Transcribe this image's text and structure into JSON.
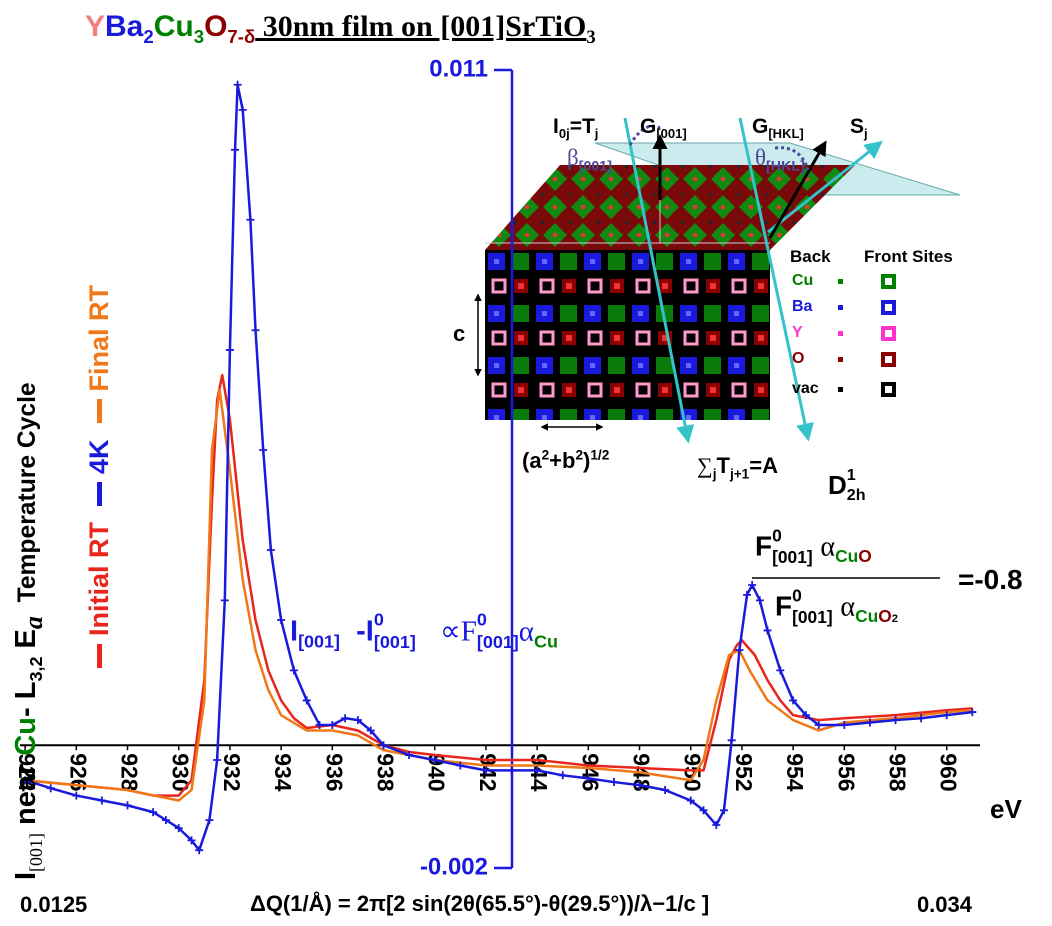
{
  "chart_data": {
    "type": "line",
    "title": [
      "Y",
      "Ba",
      "2",
      "Cu",
      "3",
      "O",
      "7-δ",
      " 30nm film on [001]SrTiO",
      "3"
    ],
    "ylabel": [
      "I",
      "[001]",
      " near ",
      "Cu",
      "- L",
      "3,2",
      " E",
      "a",
      "  Temperature Cycle"
    ],
    "xlabel": "eV",
    "x2label": "ΔQ(1/Å) = 2π[2 sin(2θ(65.5°)-θ(29.5°))/λ−1/c ]",
    "x2ticks": [
      0.0125,
      0.034
    ],
    "xlim": [
      923.8,
      961.3
    ],
    "xticks": [
      924,
      926,
      928,
      930,
      932,
      934,
      936,
      938,
      940,
      942,
      944,
      946,
      948,
      950,
      952,
      954,
      956,
      958,
      960
    ],
    "ylim": [
      -0.002,
      0.011
    ],
    "yticks": [
      -0.002,
      0.011
    ],
    "grid": false,
    "series": [
      {
        "name": "Initial RT",
        "color": "#e8261c",
        "x": [
          924,
          926,
          928,
          929,
          930,
          930.5,
          931,
          931.3,
          931.5,
          931.7,
          932,
          932.5,
          933,
          933.5,
          934,
          934.5,
          935,
          936,
          937,
          938,
          939,
          940,
          942,
          944,
          946,
          948,
          950,
          950.5,
          951,
          951.5,
          951.8,
          952,
          952.5,
          953,
          953.5,
          954,
          955,
          956,
          958,
          960,
          961
        ],
        "values": [
          -0.00057,
          -0.00065,
          -0.00073,
          -0.00082,
          -0.00082,
          -0.00057,
          0.00106,
          0.00399,
          0.00562,
          0.00603,
          0.0053,
          0.00334,
          0.00204,
          0.00122,
          0.00073,
          0.00044,
          0.00028,
          0.00033,
          0.00024,
          0,
          -0.00011,
          -0.00016,
          -0.00024,
          -0.00024,
          -0.00033,
          -0.00037,
          -0.00041,
          -0.00041,
          0.00041,
          0.00139,
          0.00163,
          0.00171,
          0.00147,
          0.00106,
          0.00073,
          0.00049,
          0.00041,
          0.00044,
          0.00049,
          0.00057,
          0.0006
        ]
      },
      {
        "name": "4K",
        "color": "#1a1adc",
        "marker": "+",
        "x": [
          924,
          925,
          926,
          927,
          928,
          929,
          929.5,
          930,
          930.5,
          930.8,
          931.2,
          931.5,
          931.8,
          932,
          932.2,
          932.3,
          932.5,
          932.8,
          933,
          933.3,
          933.6,
          934,
          934.5,
          935,
          935.5,
          936,
          936.5,
          937,
          937.5,
          938,
          939,
          940,
          941,
          942,
          943,
          944,
          945,
          946,
          947,
          948,
          949,
          950,
          950.5,
          951,
          951.3,
          951.6,
          951.9,
          952.2,
          952.4,
          952.7,
          953,
          953.5,
          954,
          954.5,
          955,
          956,
          957,
          958,
          959,
          960,
          961
        ],
        "values": [
          -0.00057,
          -0.0007,
          -0.00082,
          -0.0009,
          -0.00098,
          -0.00109,
          -0.00122,
          -0.00135,
          -0.00155,
          -0.00171,
          -0.00122,
          -0.00024,
          0.00236,
          0.00644,
          0.0097,
          0.01076,
          0.01035,
          0.00856,
          0.00676,
          0.00481,
          0.00318,
          0.00204,
          0.00122,
          0.00073,
          0.00033,
          0.00033,
          0.00044,
          0.00041,
          0.00024,
          0,
          -0.00016,
          -0.00024,
          -0.00033,
          -0.00041,
          -0.00041,
          -0.00041,
          -0.00049,
          -0.00054,
          -0.0006,
          -0.00065,
          -0.00073,
          -0.0009,
          -0.00106,
          -0.0013,
          -0.00106,
          8e-05,
          0.00155,
          0.00245,
          0.00261,
          0.00236,
          0.00187,
          0.00122,
          0.00073,
          0.00049,
          0.00033,
          0.00033,
          0.00037,
          0.00041,
          0.00044,
          0.00049,
          0.00054
        ]
      },
      {
        "name": "Final RT",
        "color": "#f07818",
        "x": [
          924,
          926,
          928,
          930,
          930.5,
          931,
          931.3,
          931.6,
          932,
          932.5,
          933,
          933.5,
          934,
          935,
          936,
          937,
          938,
          940,
          942,
          944,
          946,
          948,
          950,
          950.5,
          951,
          951.5,
          951.9,
          952.3,
          953,
          954,
          955,
          956,
          958,
          960,
          961
        ],
        "values": [
          -0.00057,
          -0.00065,
          -0.00073,
          -0.0009,
          -0.00073,
          0.00073,
          0.00481,
          0.00579,
          0.00448,
          0.00269,
          0.00155,
          0.0009,
          0.00049,
          0.00024,
          0.00024,
          0.00016,
          -8e-05,
          -0.00024,
          -0.00033,
          -0.00033,
          -0.00037,
          -0.00044,
          -0.00057,
          -0.00024,
          0.00073,
          0.00147,
          0.00155,
          0.00122,
          0.00073,
          0.00041,
          0.00024,
          0.00037,
          0.00044,
          0.00054,
          0.00057
        ]
      }
    ],
    "annotations": {
      "difference": [
        "I",
        "[001]",
        "-I",
        "0",
        "[001]",
        "∝F",
        "0",
        "[001]",
        "α",
        "Cu"
      ],
      "ratio_numerator": [
        "F",
        "0",
        "[001]",
        "α",
        "Cu",
        "O"
      ],
      "ratio_denominator": [
        "F",
        "0",
        "[001]",
        "α",
        "Cu",
        "O",
        "2"
      ],
      "ratio_value": "=-0.8"
    }
  },
  "inset": {
    "incident": [
      "I",
      "0j",
      "=T",
      "j"
    ],
    "g001": [
      "G",
      "[001]"
    ],
    "ghkl": [
      "G",
      "[HKL]"
    ],
    "scattered": [
      "S",
      "j"
    ],
    "beta": [
      "β",
      "[001]"
    ],
    "theta": [
      "θ",
      "[HKL]"
    ],
    "c_label": "c",
    "ab_label": [
      "(a",
      "2",
      "+b",
      "2",
      ")",
      "1/2"
    ],
    "sum_label": [
      "∑",
      "j",
      "T",
      "j+1",
      "=A"
    ],
    "symmetry": [
      "D",
      "1",
      "2h"
    ],
    "legend": {
      "header": [
        "Back",
        "Front Sites"
      ],
      "items": [
        {
          "label": "Cu",
          "color": "#008000"
        },
        {
          "label": "Ba",
          "color": "#1a1adc"
        },
        {
          "label": "Y",
          "color": "#ff33cc"
        },
        {
          "label": "O",
          "color": "#8b0000"
        },
        {
          "label": "vac",
          "color": "#000000"
        }
      ]
    }
  }
}
